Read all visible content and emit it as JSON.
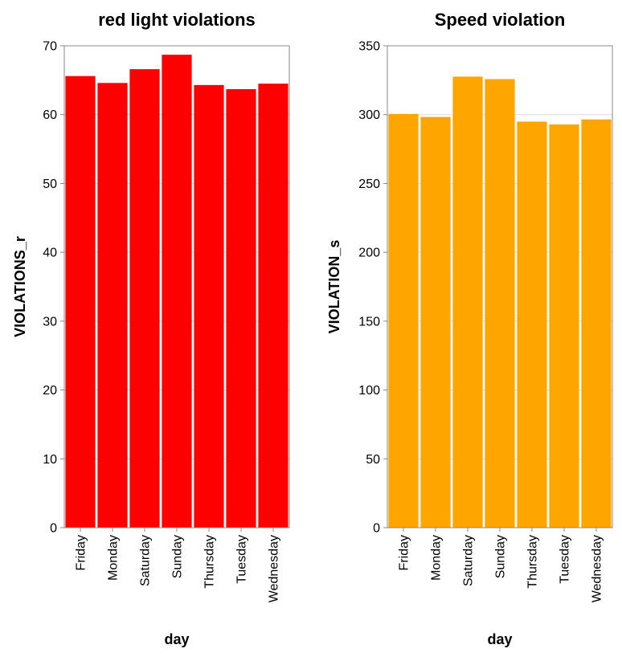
{
  "chart_data": [
    {
      "type": "bar",
      "title": "red light violations",
      "xlabel": "day",
      "ylabel": "VIOLATIONS_r",
      "categories": [
        "Friday",
        "Monday",
        "Saturday",
        "Sunday",
        "Thursday",
        "Tuesday",
        "Wednesday"
      ],
      "values": [
        65.6,
        64.6,
        66.6,
        68.7,
        64.3,
        63.7,
        64.5
      ],
      "ylim": [
        0,
        70
      ],
      "yticks": [
        0,
        10,
        20,
        30,
        40,
        50,
        60,
        70
      ],
      "color": "#ff0000",
      "grid": true,
      "legend": "none"
    },
    {
      "type": "bar",
      "title": "Speed violation",
      "xlabel": "day",
      "ylabel": "VIOLATION_s",
      "categories": [
        "Friday",
        "Monday",
        "Saturday",
        "Sunday",
        "Thursday",
        "Tuesday",
        "Wednesday"
      ],
      "values": [
        300.5,
        298.3,
        327.6,
        325.8,
        294.9,
        292.9,
        296.5
      ],
      "ylim": [
        0,
        350
      ],
      "yticks": [
        0,
        50,
        100,
        150,
        200,
        250,
        300,
        350
      ],
      "color": "#ffa500",
      "grid": true,
      "legend": "none"
    }
  ]
}
